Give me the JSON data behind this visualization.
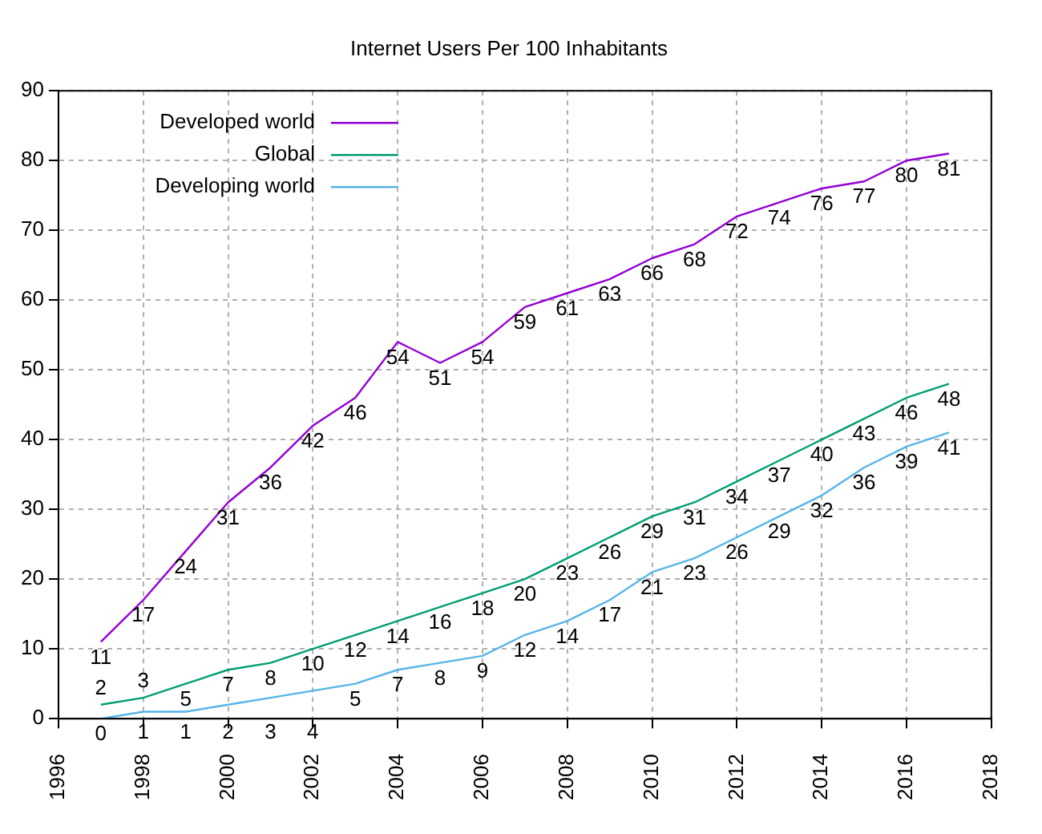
{
  "chart_data": {
    "type": "line",
    "title": "Internet Users Per 100 Inhabitants",
    "x": [
      1997,
      1998,
      1999,
      2000,
      2001,
      2002,
      2003,
      2004,
      2005,
      2006,
      2007,
      2008,
      2009,
      2010,
      2011,
      2012,
      2013,
      2014,
      2015,
      2016,
      2017
    ],
    "series": [
      {
        "name": "Developed world",
        "color": "#9400d3",
        "values": [
          11,
          17,
          24,
          31,
          36,
          42,
          46,
          54,
          51,
          54,
          59,
          61,
          63,
          66,
          68,
          72,
          74,
          76,
          77,
          80,
          81
        ]
      },
      {
        "name": "Global",
        "color": "#009e73",
        "values": [
          2,
          3,
          5,
          7,
          8,
          10,
          12,
          14,
          16,
          18,
          20,
          23,
          26,
          29,
          31,
          34,
          37,
          40,
          43,
          46,
          48
        ]
      },
      {
        "name": "Developing world",
        "color": "#56b4e9",
        "values": [
          0,
          1,
          1,
          2,
          3,
          4,
          5,
          7,
          8,
          9,
          12,
          14,
          17,
          21,
          23,
          26,
          29,
          32,
          36,
          39,
          41
        ]
      }
    ],
    "xlim": [
      1996,
      2018
    ],
    "xticks": [
      1996,
      1998,
      2000,
      2002,
      2004,
      2006,
      2008,
      2010,
      2012,
      2014,
      2016,
      2018
    ],
    "ylim": [
      0,
      90
    ],
    "yticks": [
      0,
      10,
      20,
      30,
      40,
      50,
      60,
      70,
      80,
      90
    ],
    "grid": true,
    "legend": "top left",
    "data_labels": true,
    "marker": "none",
    "line_style": "solid"
  }
}
